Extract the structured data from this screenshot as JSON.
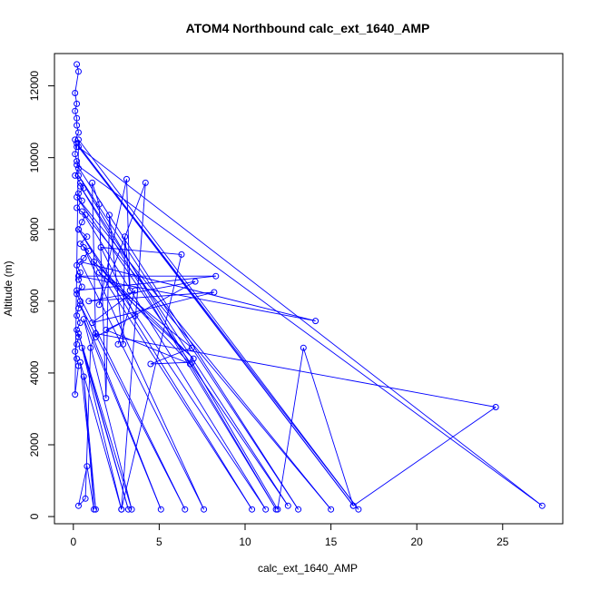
{
  "chart_data": {
    "type": "line",
    "title": "ATOM4 Northbound calc_ext_1640_AMP",
    "xlabel": "calc_ext_1640_AMP",
    "ylabel": "Altitude (m)",
    "xlim": [
      -1.1,
      28.5
    ],
    "ylim": [
      -200,
      12900
    ],
    "xticks": [
      0,
      5,
      10,
      15,
      20,
      25
    ],
    "yticks": [
      0,
      2000,
      4000,
      6000,
      8000,
      10000,
      12000
    ],
    "grid": false,
    "legend": "none",
    "colors": {
      "series": "#0000ff",
      "frame": "#000000"
    },
    "series": [
      {
        "marker": "open-circle",
        "points": [
          [
            0.2,
            12600
          ],
          [
            0.3,
            12400
          ],
          [
            0.1,
            11800
          ],
          [
            0.2,
            11500
          ],
          [
            0.1,
            11300
          ],
          [
            0.2,
            11100
          ],
          [
            0.2,
            10900
          ],
          [
            0.3,
            10700
          ],
          [
            0.1,
            10500
          ],
          [
            0.2,
            10300
          ],
          [
            0.1,
            10100
          ],
          [
            0.2,
            9900
          ],
          [
            0.3,
            9700
          ],
          [
            0.1,
            9500
          ],
          [
            0.4,
            9300
          ],
          [
            0.6,
            9150
          ],
          [
            0.3,
            9000
          ],
          [
            0.5,
            8800
          ],
          [
            0.2,
            8600
          ],
          [
            0.7,
            8400
          ],
          [
            0.5,
            8200
          ],
          [
            0.3,
            8000
          ],
          [
            0.8,
            7800
          ],
          [
            0.4,
            7600
          ],
          [
            0.9,
            7400
          ],
          [
            0.6,
            7200
          ],
          [
            0.2,
            7000
          ],
          [
            0.4,
            6800
          ],
          [
            0.3,
            6600
          ],
          [
            0.5,
            6400
          ],
          [
            0.2,
            6200
          ],
          [
            0.4,
            6000
          ],
          [
            0.3,
            5800
          ],
          [
            0.2,
            5600
          ],
          [
            0.4,
            5400
          ],
          [
            0.2,
            5200
          ],
          [
            0.3,
            5000
          ],
          [
            0.2,
            4800
          ],
          [
            0.1,
            4600
          ],
          [
            0.2,
            4400
          ],
          [
            0.3,
            4200
          ],
          [
            0.1,
            3400
          ],
          [
            0.3,
            10500
          ],
          [
            16.6,
            200
          ],
          [
            0.2,
            10400
          ],
          [
            16.3,
            300
          ],
          [
            0.3,
            10300
          ],
          [
            27.3,
            300
          ],
          [
            0.2,
            9800
          ],
          [
            13.1,
            200
          ],
          [
            0.3,
            9500
          ],
          [
            11.8,
            200
          ],
          [
            0.4,
            9200
          ],
          [
            12.5,
            300
          ],
          [
            0.2,
            8900
          ],
          [
            15.0,
            200
          ],
          [
            0.5,
            8500
          ],
          [
            11.2,
            200
          ],
          [
            0.3,
            8000
          ],
          [
            10.4,
            200
          ],
          [
            0.6,
            7500
          ],
          [
            7.6,
            200
          ],
          [
            0.4,
            7100
          ],
          [
            14.1,
            5450
          ],
          [
            0.3,
            6700
          ],
          [
            8.3,
            6700
          ],
          [
            0.2,
            6300
          ],
          [
            6.5,
            200
          ],
          [
            0.4,
            5900
          ],
          [
            5.1,
            200
          ],
          [
            0.6,
            5500
          ],
          [
            3.4,
            200
          ],
          [
            0.3,
            5100
          ],
          [
            3.2,
            200
          ],
          [
            0.5,
            4700
          ],
          [
            2.8,
            200
          ],
          [
            0.4,
            4300
          ],
          [
            1.3,
            200
          ],
          [
            0.6,
            3900
          ],
          [
            1.2,
            200
          ],
          [
            0.8,
            1400
          ],
          [
            0.3,
            300
          ],
          [
            0.7,
            500
          ],
          [
            1.0,
            4700
          ],
          [
            1.3,
            5100
          ],
          [
            24.6,
            3050
          ],
          [
            16.3,
            300
          ],
          [
            13.4,
            4700
          ],
          [
            11.9,
            200
          ],
          [
            6.9,
            4300
          ],
          [
            4.5,
            4250
          ],
          [
            6.9,
            4700
          ],
          [
            1.5,
            6800
          ],
          [
            7.0,
            4400
          ],
          [
            1.2,
            7100
          ],
          [
            6.8,
            4250
          ],
          [
            1.9,
            5200
          ],
          [
            3.6,
            5600
          ],
          [
            1.6,
            7500
          ],
          [
            6.3,
            7300
          ],
          [
            2.8,
            200
          ],
          [
            4.2,
            9300
          ],
          [
            1.5,
            5900
          ],
          [
            3.1,
            9400
          ],
          [
            3.3,
            6300
          ],
          [
            3.0,
            7800
          ],
          [
            2.9,
            4800
          ],
          [
            2.1,
            8400
          ],
          [
            1.9,
            3300
          ],
          [
            1.5,
            8700
          ],
          [
            1.1,
            9300
          ],
          [
            1.3,
            5000
          ],
          [
            7.1,
            6550
          ],
          [
            0.9,
            6000
          ],
          [
            8.2,
            6250
          ],
          [
            1.1,
            5400
          ],
          [
            3.6,
            6300
          ],
          [
            2.6,
            4800
          ]
        ]
      }
    ]
  }
}
